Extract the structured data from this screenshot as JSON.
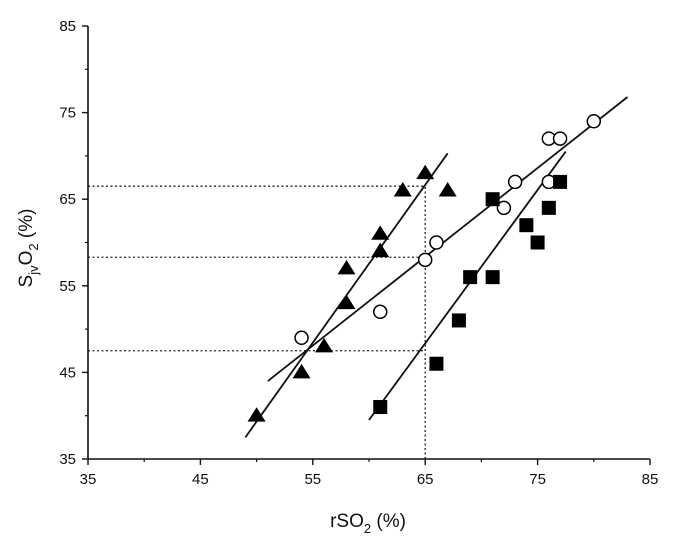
{
  "chart_data": {
    "type": "scatter",
    "title": "",
    "xlabel": {
      "main": "rSO",
      "sub": "2",
      "unit": " (%)"
    },
    "ylabel": {
      "main": "S",
      "sub1": "jv",
      "mid": "O",
      "sub2": "2",
      "unit": " (%)"
    },
    "xlim": [
      35,
      85
    ],
    "ylim": [
      35,
      85
    ],
    "xticks": [
      35,
      45,
      55,
      65,
      75,
      85
    ],
    "yticks": [
      35,
      45,
      55,
      65,
      75,
      85
    ],
    "grid": false,
    "series": [
      {
        "name": "triangles",
        "marker": "filled-triangle",
        "points": [
          [
            50,
            40
          ],
          [
            54,
            45
          ],
          [
            56,
            48
          ],
          [
            58,
            53
          ],
          [
            58,
            57
          ],
          [
            61,
            59
          ],
          [
            61,
            61
          ],
          [
            63,
            66
          ],
          [
            65,
            68
          ],
          [
            67,
            66
          ]
        ],
        "fit": [
          [
            49,
            37.5
          ],
          [
            67,
            70.3
          ]
        ]
      },
      {
        "name": "circles",
        "marker": "open-circle",
        "points": [
          [
            54,
            49
          ],
          [
            61,
            52
          ],
          [
            65,
            58
          ],
          [
            66,
            60
          ],
          [
            72,
            64
          ],
          [
            73,
            67
          ],
          [
            76,
            67
          ],
          [
            76,
            72
          ],
          [
            77,
            72
          ],
          [
            80,
            74
          ]
        ],
        "fit": [
          [
            51,
            44
          ],
          [
            83,
            76.8
          ]
        ]
      },
      {
        "name": "squares",
        "marker": "filled-square",
        "points": [
          [
            61,
            41
          ],
          [
            66,
            46
          ],
          [
            68,
            51
          ],
          [
            69,
            56
          ],
          [
            71,
            56
          ],
          [
            71,
            65
          ],
          [
            74,
            62
          ],
          [
            75,
            60
          ],
          [
            76,
            64
          ],
          [
            77,
            67
          ]
        ],
        "fit": [
          [
            60,
            39.5
          ],
          [
            77.5,
            70.5
          ]
        ]
      }
    ],
    "reference_lines": {
      "vertical_x": 65,
      "horizontal_y": [
        66.5,
        58.3,
        47.5
      ]
    }
  }
}
